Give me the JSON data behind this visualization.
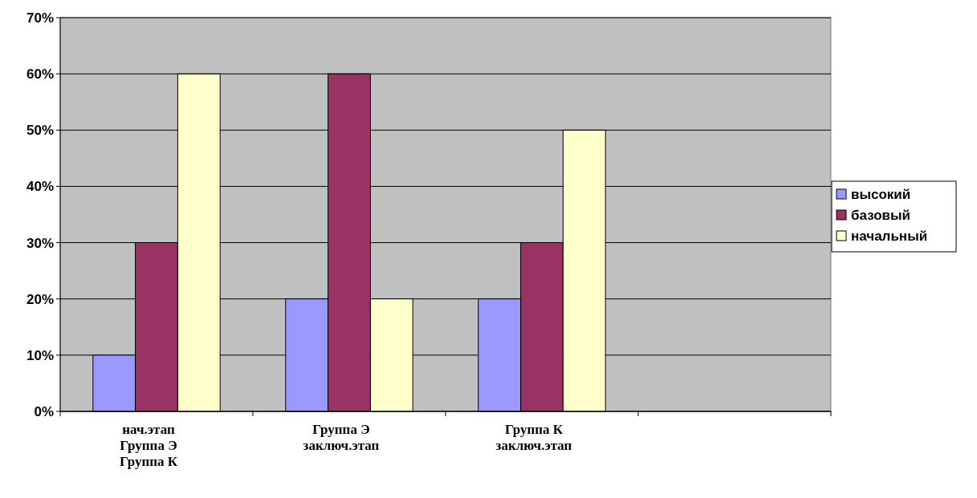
{
  "chart_data": {
    "type": "bar",
    "categories": [
      "нач.этап\nГруппа Э\nГруппа К",
      "Группа Э\nзаключ.этап",
      "Группа К\nзаключ.этап",
      null
    ],
    "series": [
      {
        "name": "высокий",
        "color": "#9999ff",
        "values": [
          10,
          20,
          20,
          null
        ]
      },
      {
        "name": "базовый",
        "color": "#993366",
        "values": [
          30,
          60,
          30,
          null
        ]
      },
      {
        "name": "начальный",
        "color": "#ffffcc",
        "values": [
          60,
          20,
          50,
          null
        ]
      }
    ],
    "ylim": [
      0,
      70
    ],
    "yticks": [
      {
        "value": 0,
        "label": "0%"
      },
      {
        "value": 10,
        "label": "10%"
      },
      {
        "value": 20,
        "label": "20%"
      },
      {
        "value": 30,
        "label": "30%"
      },
      {
        "value": 40,
        "label": "40%"
      },
      {
        "value": 50,
        "label": "50%"
      },
      {
        "value": 60,
        "label": "60%"
      },
      {
        "value": 70,
        "label": "70%"
      }
    ],
    "grid": "y",
    "legend": "right"
  }
}
